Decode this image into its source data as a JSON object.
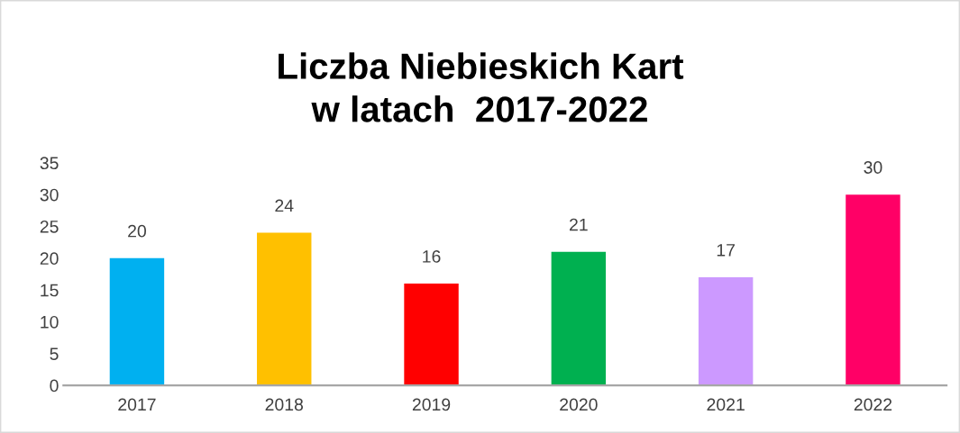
{
  "chart_data": {
    "type": "bar",
    "title": "Liczba Niebieskich Kart\nw latach  2017-2022",
    "categories": [
      "2017",
      "2018",
      "2019",
      "2020",
      "2021",
      "2022"
    ],
    "values": [
      20,
      24,
      16,
      21,
      17,
      30
    ],
    "colors": [
      "#00b0f0",
      "#ffc000",
      "#ff0000",
      "#00b050",
      "#cc99ff",
      "#ff0066"
    ],
    "ylim": [
      0,
      35
    ],
    "yticks": [
      0,
      5,
      10,
      15,
      20,
      25,
      30,
      35
    ],
    "grid": false,
    "data_labels": true
  }
}
